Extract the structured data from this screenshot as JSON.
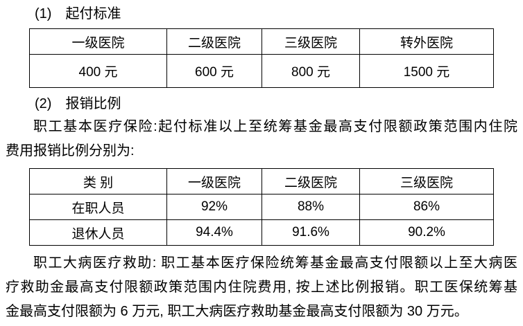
{
  "colors": {
    "background": "#ffffff",
    "text": "#000000",
    "table_border": "#000000"
  },
  "sections": {
    "deductible": {
      "heading": "(1)　起付标准",
      "table": {
        "headers": [
          "一级医院",
          "二级医院",
          "三级医院",
          "转外医院"
        ],
        "values": [
          "400 元",
          "600 元",
          "800 元",
          "1500 元"
        ]
      }
    },
    "reimbursement": {
      "heading": "(2)　报销比例",
      "intro_lines": [
        "职工基本医疗保险:起付标准以上至统筹基金最高支付限额政策范围内住院",
        "费用报销比例分别为:"
      ],
      "table": {
        "headers": [
          "类 别",
          "一级医院",
          "二级医院",
          "三级医院"
        ],
        "rows": [
          {
            "label": "在职人员",
            "values": [
              "92%",
              "88%",
              "86%"
            ]
          },
          {
            "label": "退休人员",
            "values": [
              "94.4%",
              "91.6%",
              "90.2%"
            ]
          }
        ]
      }
    },
    "major_illness": {
      "lines": [
        "职工大病医疗救助: 职工基本医疗保险统筹基金最高支付限额以上至大病医",
        "疗救助金最高支付限额政策范围内住院费用, 按上述比例报销。职工医保统筹基",
        "金最高支付限额为 6 万元, 职工大病医疗救助基金最高支付限额为 30 万元。"
      ]
    }
  }
}
